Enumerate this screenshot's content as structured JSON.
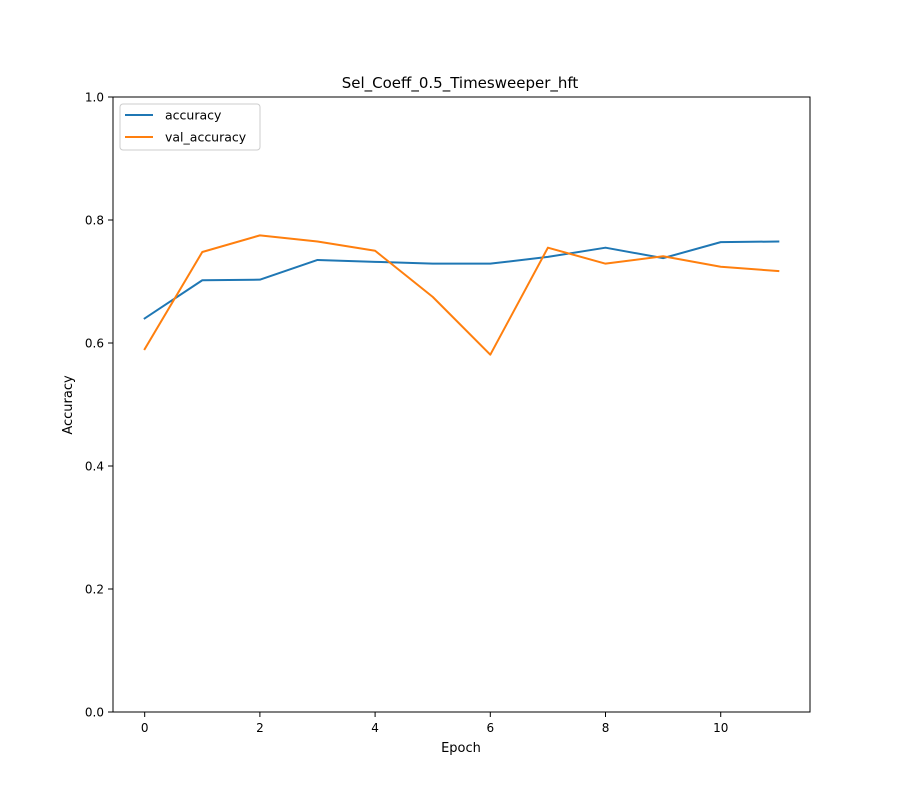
{
  "chart_data": {
    "type": "line",
    "title": "Sel_Coeff_0.5_Timesweeper_hft",
    "xlabel": "Epoch",
    "ylabel": "Accuracy",
    "xlim": [
      -0.55,
      11.55
    ],
    "ylim": [
      0.0,
      1.0
    ],
    "x_ticks": [
      0,
      2,
      4,
      6,
      8,
      10
    ],
    "y_ticks": [
      0.0,
      0.2,
      0.4,
      0.6,
      0.8,
      1.0
    ],
    "x_tick_labels": [
      "0",
      "2",
      "4",
      "6",
      "8",
      "10"
    ],
    "y_tick_labels": [
      "0.0",
      "0.2",
      "0.4",
      "0.6",
      "0.8",
      "1.0"
    ],
    "grid": false,
    "legend_position": "top-left",
    "x": [
      0,
      1,
      2,
      3,
      4,
      5,
      6,
      7,
      8,
      9,
      10,
      11
    ],
    "series": [
      {
        "name": "accuracy",
        "color": "#1f77b4",
        "values": [
          0.64,
          0.702,
          0.703,
          0.735,
          0.732,
          0.729,
          0.729,
          0.74,
          0.755,
          0.738,
          0.764,
          0.765
        ]
      },
      {
        "name": "val_accuracy",
        "color": "#ff7f0e",
        "values": [
          0.59,
          0.748,
          0.775,
          0.765,
          0.75,
          0.675,
          0.581,
          0.755,
          0.729,
          0.741,
          0.724,
          0.717
        ]
      }
    ]
  }
}
